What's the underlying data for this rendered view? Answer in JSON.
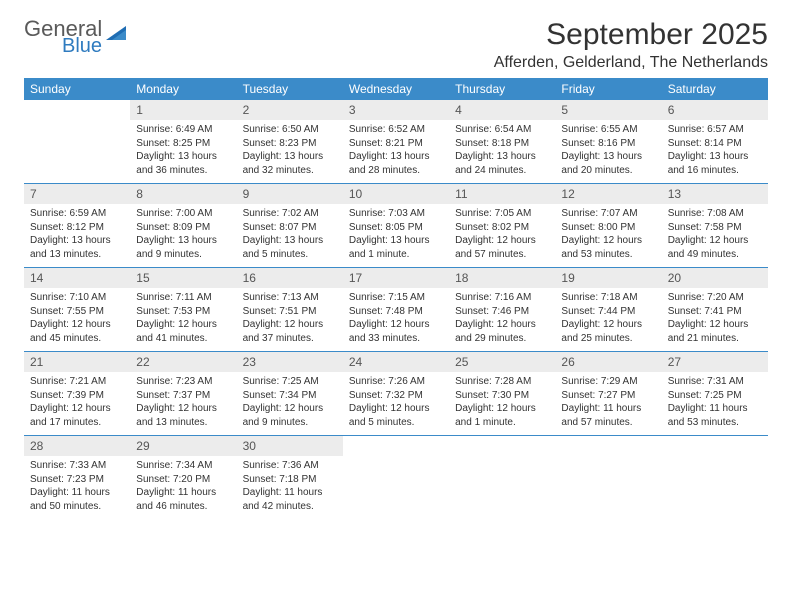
{
  "logo": {
    "general": "General",
    "blue": "Blue"
  },
  "title": "September 2025",
  "location": "Afferden, Gelderland, The Netherlands",
  "colors": {
    "header_bg": "#3b8bc9",
    "header_fg": "#ffffff",
    "daynum_bg": "#ececec",
    "row_border": "#3b8bc9",
    "logo_blue": "#2f7bbf",
    "logo_gray": "#5a5a5a"
  },
  "day_headers": [
    "Sunday",
    "Monday",
    "Tuesday",
    "Wednesday",
    "Thursday",
    "Friday",
    "Saturday"
  ],
  "weeks": [
    [
      null,
      {
        "n": "1",
        "sr": "6:49 AM",
        "ss": "8:25 PM",
        "dl": "13 hours and 36 minutes."
      },
      {
        "n": "2",
        "sr": "6:50 AM",
        "ss": "8:23 PM",
        "dl": "13 hours and 32 minutes."
      },
      {
        "n": "3",
        "sr": "6:52 AM",
        "ss": "8:21 PM",
        "dl": "13 hours and 28 minutes."
      },
      {
        "n": "4",
        "sr": "6:54 AM",
        "ss": "8:18 PM",
        "dl": "13 hours and 24 minutes."
      },
      {
        "n": "5",
        "sr": "6:55 AM",
        "ss": "8:16 PM",
        "dl": "13 hours and 20 minutes."
      },
      {
        "n": "6",
        "sr": "6:57 AM",
        "ss": "8:14 PM",
        "dl": "13 hours and 16 minutes."
      }
    ],
    [
      {
        "n": "7",
        "sr": "6:59 AM",
        "ss": "8:12 PM",
        "dl": "13 hours and 13 minutes."
      },
      {
        "n": "8",
        "sr": "7:00 AM",
        "ss": "8:09 PM",
        "dl": "13 hours and 9 minutes."
      },
      {
        "n": "9",
        "sr": "7:02 AM",
        "ss": "8:07 PM",
        "dl": "13 hours and 5 minutes."
      },
      {
        "n": "10",
        "sr": "7:03 AM",
        "ss": "8:05 PM",
        "dl": "13 hours and 1 minute."
      },
      {
        "n": "11",
        "sr": "7:05 AM",
        "ss": "8:02 PM",
        "dl": "12 hours and 57 minutes."
      },
      {
        "n": "12",
        "sr": "7:07 AM",
        "ss": "8:00 PM",
        "dl": "12 hours and 53 minutes."
      },
      {
        "n": "13",
        "sr": "7:08 AM",
        "ss": "7:58 PM",
        "dl": "12 hours and 49 minutes."
      }
    ],
    [
      {
        "n": "14",
        "sr": "7:10 AM",
        "ss": "7:55 PM",
        "dl": "12 hours and 45 minutes."
      },
      {
        "n": "15",
        "sr": "7:11 AM",
        "ss": "7:53 PM",
        "dl": "12 hours and 41 minutes."
      },
      {
        "n": "16",
        "sr": "7:13 AM",
        "ss": "7:51 PM",
        "dl": "12 hours and 37 minutes."
      },
      {
        "n": "17",
        "sr": "7:15 AM",
        "ss": "7:48 PM",
        "dl": "12 hours and 33 minutes."
      },
      {
        "n": "18",
        "sr": "7:16 AM",
        "ss": "7:46 PM",
        "dl": "12 hours and 29 minutes."
      },
      {
        "n": "19",
        "sr": "7:18 AM",
        "ss": "7:44 PM",
        "dl": "12 hours and 25 minutes."
      },
      {
        "n": "20",
        "sr": "7:20 AM",
        "ss": "7:41 PM",
        "dl": "12 hours and 21 minutes."
      }
    ],
    [
      {
        "n": "21",
        "sr": "7:21 AM",
        "ss": "7:39 PM",
        "dl": "12 hours and 17 minutes."
      },
      {
        "n": "22",
        "sr": "7:23 AM",
        "ss": "7:37 PM",
        "dl": "12 hours and 13 minutes."
      },
      {
        "n": "23",
        "sr": "7:25 AM",
        "ss": "7:34 PM",
        "dl": "12 hours and 9 minutes."
      },
      {
        "n": "24",
        "sr": "7:26 AM",
        "ss": "7:32 PM",
        "dl": "12 hours and 5 minutes."
      },
      {
        "n": "25",
        "sr": "7:28 AM",
        "ss": "7:30 PM",
        "dl": "12 hours and 1 minute."
      },
      {
        "n": "26",
        "sr": "7:29 AM",
        "ss": "7:27 PM",
        "dl": "11 hours and 57 minutes."
      },
      {
        "n": "27",
        "sr": "7:31 AM",
        "ss": "7:25 PM",
        "dl": "11 hours and 53 minutes."
      }
    ],
    [
      {
        "n": "28",
        "sr": "7:33 AM",
        "ss": "7:23 PM",
        "dl": "11 hours and 50 minutes."
      },
      {
        "n": "29",
        "sr": "7:34 AM",
        "ss": "7:20 PM",
        "dl": "11 hours and 46 minutes."
      },
      {
        "n": "30",
        "sr": "7:36 AM",
        "ss": "7:18 PM",
        "dl": "11 hours and 42 minutes."
      },
      null,
      null,
      null,
      null
    ]
  ],
  "labels": {
    "sunrise": "Sunrise:",
    "sunset": "Sunset:",
    "daylight": "Daylight:"
  }
}
